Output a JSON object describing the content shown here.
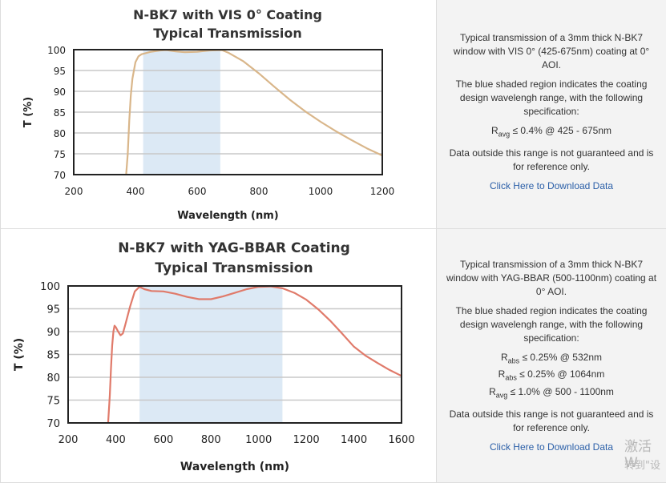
{
  "panels": [
    {
      "id": "vis0",
      "title_line1": "N-BK7 with VIS 0° Coating",
      "title_line2": "Typical Transmission",
      "description": {
        "para1": "Typical transmission of a 3mm thick N-BK7 window with VIS 0° (425-675nm) coating at 0° AOI.",
        "para2": "The blue shaded region indicates the coating design wavelengh range, with the following specification:",
        "specs": [
          {
            "symbol": "R",
            "sub": "avg",
            "text": "≤ 0.4% @ 425 - 675nm"
          }
        ],
        "para3": "Data outside this range is not guaranteed and is for reference only.",
        "link": "Click Here to Download Data"
      },
      "chart_data": {
        "type": "line",
        "title": "N-BK7 with VIS 0° Coating Typical Transmission",
        "xlabel": "Wavelength (nm)",
        "ylabel": "T (%)",
        "xlim": [
          200,
          1200
        ],
        "ylim": [
          70,
          100
        ],
        "xticks": [
          200,
          400,
          600,
          800,
          1000,
          1200
        ],
        "yticks": [
          70,
          75,
          80,
          85,
          90,
          95,
          100
        ],
        "grid": "horizontal",
        "shaded_range": [
          425,
          675
        ],
        "series": [
          {
            "color": "#d9b68a",
            "x": [
              370,
              375,
              380,
              385,
              390,
              400,
              410,
              420,
              430,
              450,
              480,
              500,
              530,
              560,
              600,
              640,
              680,
              700,
              750,
              800,
              850,
              900,
              950,
              1000,
              1050,
              1100,
              1150,
              1200
            ],
            "y": [
              70,
              75,
              83,
              89,
              93,
              97,
              98.4,
              98.9,
              99.1,
              99.5,
              99.8,
              99.9,
              99.6,
              99.4,
              99.5,
              99.8,
              99.9,
              99.3,
              97.2,
              94.3,
              91.1,
              88,
              85.2,
              82.7,
              80.4,
              78.3,
              76.3,
              74.6
            ]
          }
        ]
      }
    },
    {
      "id": "yagbbar",
      "title_line1": "N-BK7 with YAG-BBAR Coating",
      "title_line2": "Typical Transmission",
      "description": {
        "para1": "Typical transmission of a 3mm thick N-BK7 window with YAG-BBAR (500-1100nm) coating at 0° AOI.",
        "para2": "The blue shaded region indicates the coating design wavelengh range, with the following specification:",
        "specs": [
          {
            "symbol": "R",
            "sub": "abs",
            "text": "≤ 0.25% @ 532nm"
          },
          {
            "symbol": "R",
            "sub": "abs",
            "text": "≤ 0.25% @ 1064nm"
          },
          {
            "symbol": "R",
            "sub": "avg",
            "text": "≤ 1.0% @ 500 - 1100nm"
          }
        ],
        "para3": "Data outside this range is not guaranteed and is for reference only.",
        "link": "Click Here to Download Data"
      },
      "chart_data": {
        "type": "line",
        "title": "N-BK7 with YAG-BBAR Coating Typical Transmission",
        "xlabel": "Wavelength (nm)",
        "ylabel": "T (%)",
        "xlim": [
          200,
          1600
        ],
        "ylim": [
          70,
          100
        ],
        "xticks": [
          200,
          400,
          600,
          800,
          1000,
          1200,
          1400,
          1600
        ],
        "yticks": [
          70,
          75,
          80,
          85,
          90,
          95,
          100
        ],
        "grid": "horizontal",
        "shaded_range": [
          500,
          1100
        ],
        "series": [
          {
            "color": "#e07a6a",
            "x": [
              368,
              375,
              380,
              385,
              390,
              395,
              400,
              410,
              420,
              430,
              440,
              460,
              480,
              500,
              520,
              550,
              600,
              650,
              700,
              750,
              800,
              850,
              900,
              950,
              1000,
              1050,
              1100,
              1150,
              1200,
              1250,
              1300,
              1350,
              1400,
              1450,
              1500,
              1550,
              1600
            ],
            "y": [
              70,
              76,
              82,
              87,
              90,
              91.3,
              91,
              90,
              89.2,
              89.6,
              91.5,
              95.5,
              98.8,
              99.8,
              99.3,
              98.9,
              98.8,
              98.3,
              97.6,
              97.1,
              97.1,
              97.7,
              98.5,
              99.3,
              99.8,
              99.9,
              99.5,
              98.5,
              97,
              94.9,
              92.4,
              89.6,
              86.7,
              84.7,
              83.1,
              81.6,
              80.3
            ]
          }
        ]
      }
    }
  ],
  "watermark": {
    "line1": "激活 W",
    "line2": "转到\"设"
  }
}
